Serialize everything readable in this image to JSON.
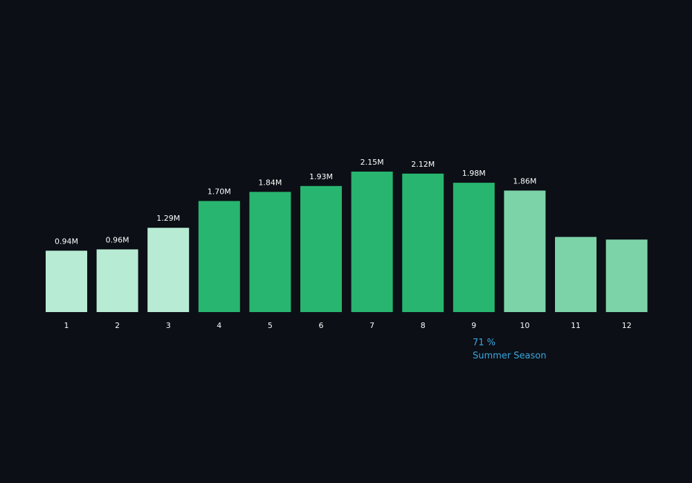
{
  "colors": {
    "background": "#0c0f16",
    "low_season": "#b8ebd3",
    "summer": "#28b56f",
    "late_season": "#7dd3a8",
    "label_text": "#ffffff",
    "annotation": "#3aa8e0"
  },
  "chart_data": {
    "type": "bar",
    "categories": [
      "1",
      "2",
      "3",
      "4",
      "5",
      "6",
      "7",
      "8",
      "9",
      "10",
      "11",
      "12"
    ],
    "values": [
      0.94,
      0.96,
      1.29,
      1.7,
      1.84,
      1.93,
      2.15,
      2.12,
      1.98,
      1.86,
      1.15,
      1.11
    ],
    "data_labels": [
      "0.94M",
      "0.96M",
      "1.29M",
      "1.70M",
      "1.84M",
      "1.93M",
      "2.15M",
      "2.12M",
      "1.98M",
      "1.86M",
      "",
      ""
    ],
    "color_groups": [
      "low_season",
      "low_season",
      "low_season",
      "summer",
      "summer",
      "summer",
      "summer",
      "summer",
      "summer",
      "late_season",
      "late_season",
      "late_season"
    ],
    "ylim": [
      0,
      2.2
    ],
    "grid": false,
    "legend": "none",
    "title": "",
    "xlabel": "",
    "ylabel": ""
  },
  "annotation": {
    "percent": "71 %",
    "label": "Summer Season"
  }
}
